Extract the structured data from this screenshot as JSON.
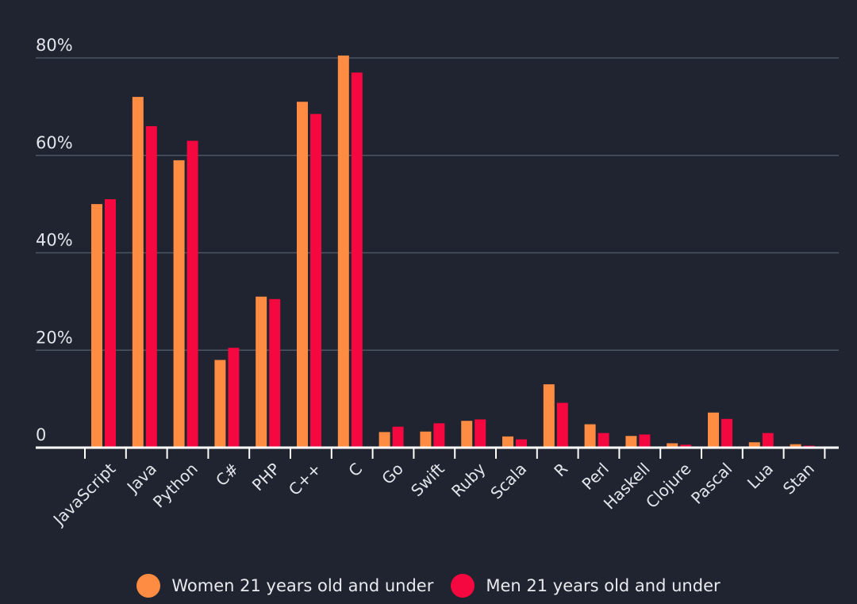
{
  "chart_data": {
    "type": "bar",
    "categories": [
      "JavaScript",
      "Java",
      "Python",
      "C#",
      "PHP",
      "C++",
      "C",
      "Go",
      "Swift",
      "Ruby",
      "Scala",
      "R",
      "Perl",
      "Haskell",
      "Clojure",
      "Pascal",
      "Lua",
      "Stan"
    ],
    "series": [
      {
        "name": "Women 21 years old and under",
        "color": "#ff8c42",
        "values": [
          50,
          72,
          59,
          18,
          31,
          71,
          80.5,
          3.2,
          3.3,
          5.5,
          2.3,
          13,
          4.8,
          2.4,
          0.9,
          7.2,
          1.1,
          0.7
        ]
      },
      {
        "name": "Men 21 years old and under",
        "color": "#f5073f",
        "values": [
          51,
          66,
          63,
          20.5,
          30.5,
          68.5,
          77,
          4.3,
          5,
          5.8,
          1.7,
          9.2,
          3,
          2.7,
          0.6,
          5.9,
          3,
          0.4
        ]
      }
    ],
    "yticks": [
      {
        "value": 0,
        "label": "0"
      },
      {
        "value": 20,
        "label": "20%"
      },
      {
        "value": 40,
        "label": "40%"
      },
      {
        "value": 60,
        "label": "60%"
      },
      {
        "value": 80,
        "label": "80%"
      }
    ],
    "ylim": [
      0,
      80
    ],
    "grid": true,
    "legend_position": "bottom",
    "title": "",
    "xlabel": "",
    "ylabel": ""
  }
}
